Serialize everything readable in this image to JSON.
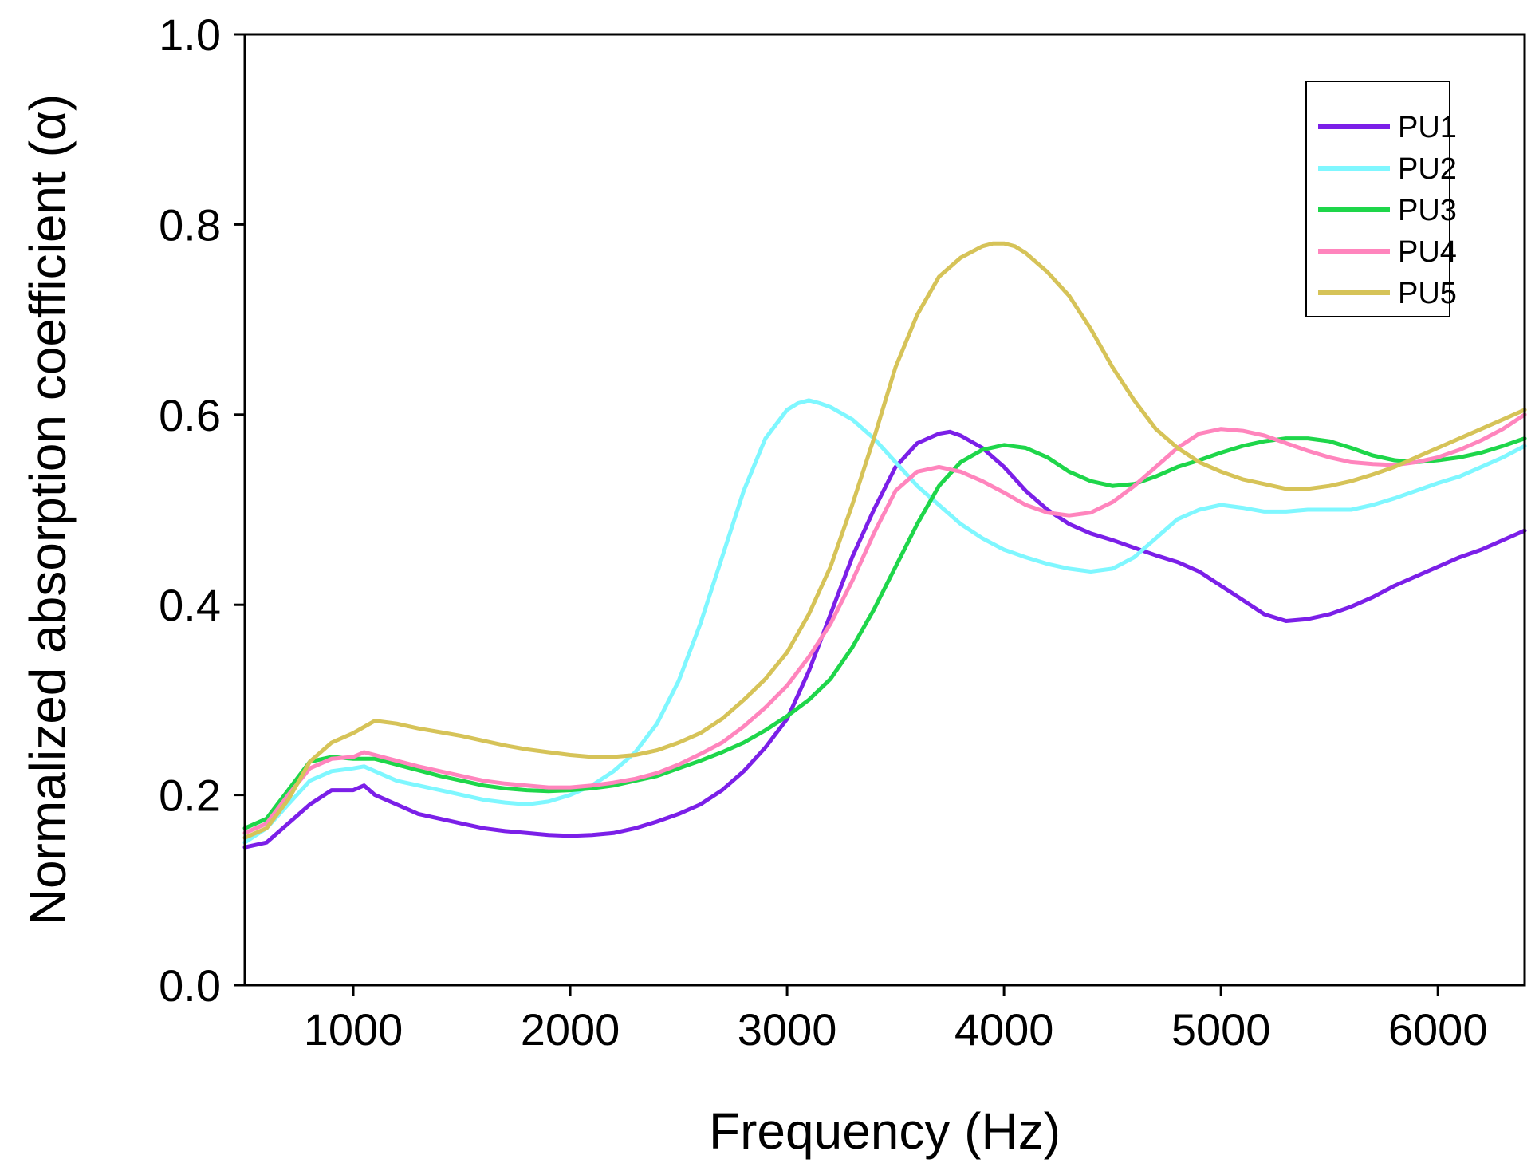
{
  "chart_data": {
    "type": "line",
    "title": "",
    "xlabel": "Frequency (Hz)",
    "ylabel": "Normalized absorption coefficient (α)",
    "xlim": [
      500,
      6400
    ],
    "ylim": [
      0.0,
      1.0
    ],
    "xticks": [
      1000,
      2000,
      3000,
      4000,
      5000,
      6000
    ],
    "xtick_labels": [
      "1000",
      "2000",
      "3000",
      "4000",
      "5000",
      "6000"
    ],
    "yticks": [
      0.0,
      0.2,
      0.4,
      0.6,
      0.8,
      1.0
    ],
    "ytick_labels": [
      "0.0",
      "0.2",
      "0.4",
      "0.6",
      "0.8",
      "1.0"
    ],
    "grid": false,
    "legend_position": "top-right",
    "series": [
      {
        "name": "PU1",
        "color": "#7b1fe8",
        "x": [
          500,
          600,
          700,
          800,
          900,
          1000,
          1050,
          1100,
          1200,
          1300,
          1400,
          1500,
          1600,
          1700,
          1800,
          1900,
          2000,
          2100,
          2200,
          2300,
          2400,
          2500,
          2600,
          2700,
          2800,
          2900,
          3000,
          3100,
          3200,
          3300,
          3400,
          3500,
          3600,
          3700,
          3750,
          3800,
          3900,
          4000,
          4100,
          4200,
          4300,
          4400,
          4500,
          4600,
          4700,
          4800,
          4900,
          5000,
          5100,
          5200,
          5300,
          5400,
          5500,
          5600,
          5700,
          5800,
          5900,
          6000,
          6100,
          6200,
          6300,
          6400
        ],
        "y": [
          0.145,
          0.15,
          0.17,
          0.19,
          0.205,
          0.205,
          0.21,
          0.2,
          0.19,
          0.18,
          0.175,
          0.17,
          0.165,
          0.162,
          0.16,
          0.158,
          0.157,
          0.158,
          0.16,
          0.165,
          0.172,
          0.18,
          0.19,
          0.205,
          0.225,
          0.25,
          0.28,
          0.33,
          0.39,
          0.45,
          0.5,
          0.545,
          0.57,
          0.58,
          0.582,
          0.578,
          0.565,
          0.545,
          0.52,
          0.5,
          0.485,
          0.475,
          0.468,
          0.46,
          0.452,
          0.445,
          0.435,
          0.42,
          0.405,
          0.39,
          0.383,
          0.385,
          0.39,
          0.398,
          0.408,
          0.42,
          0.43,
          0.44,
          0.45,
          0.458,
          0.468,
          0.478
        ]
      },
      {
        "name": "PU2",
        "color": "#7ff7ff",
        "x": [
          500,
          600,
          700,
          800,
          900,
          1000,
          1050,
          1100,
          1200,
          1300,
          1400,
          1500,
          1600,
          1700,
          1800,
          1900,
          2000,
          2100,
          2200,
          2300,
          2400,
          2500,
          2600,
          2700,
          2800,
          2900,
          3000,
          3050,
          3100,
          3150,
          3200,
          3300,
          3400,
          3500,
          3600,
          3700,
          3800,
          3900,
          4000,
          4100,
          4200,
          4300,
          4400,
          4500,
          4600,
          4700,
          4800,
          4900,
          5000,
          5100,
          5200,
          5300,
          5400,
          5500,
          5600,
          5700,
          5800,
          5900,
          6000,
          6100,
          6200,
          6300,
          6400
        ],
        "y": [
          0.15,
          0.165,
          0.19,
          0.215,
          0.225,
          0.228,
          0.23,
          0.225,
          0.215,
          0.21,
          0.205,
          0.2,
          0.195,
          0.192,
          0.19,
          0.193,
          0.2,
          0.21,
          0.225,
          0.245,
          0.275,
          0.32,
          0.38,
          0.45,
          0.52,
          0.575,
          0.605,
          0.612,
          0.615,
          0.612,
          0.608,
          0.595,
          0.575,
          0.55,
          0.525,
          0.505,
          0.485,
          0.47,
          0.458,
          0.45,
          0.443,
          0.438,
          0.435,
          0.438,
          0.45,
          0.47,
          0.49,
          0.5,
          0.505,
          0.502,
          0.498,
          0.498,
          0.5,
          0.5,
          0.5,
          0.505,
          0.512,
          0.52,
          0.528,
          0.535,
          0.545,
          0.555,
          0.567
        ]
      },
      {
        "name": "PU3",
        "color": "#1ed64a",
        "x": [
          500,
          600,
          700,
          800,
          900,
          1000,
          1100,
          1200,
          1300,
          1400,
          1500,
          1600,
          1700,
          1800,
          1900,
          2000,
          2100,
          2200,
          2300,
          2400,
          2500,
          2600,
          2700,
          2800,
          2900,
          3000,
          3100,
          3200,
          3300,
          3400,
          3500,
          3600,
          3700,
          3800,
          3900,
          4000,
          4100,
          4200,
          4300,
          4400,
          4500,
          4600,
          4700,
          4800,
          4900,
          5000,
          5100,
          5200,
          5300,
          5400,
          5500,
          5600,
          5700,
          5800,
          5900,
          6000,
          6100,
          6200,
          6300,
          6400
        ],
        "y": [
          0.165,
          0.175,
          0.205,
          0.235,
          0.24,
          0.238,
          0.238,
          0.232,
          0.226,
          0.22,
          0.215,
          0.21,
          0.207,
          0.205,
          0.204,
          0.205,
          0.207,
          0.21,
          0.215,
          0.22,
          0.228,
          0.236,
          0.245,
          0.255,
          0.268,
          0.283,
          0.3,
          0.322,
          0.355,
          0.395,
          0.44,
          0.485,
          0.525,
          0.55,
          0.563,
          0.568,
          0.565,
          0.555,
          0.54,
          0.53,
          0.525,
          0.527,
          0.535,
          0.545,
          0.552,
          0.56,
          0.567,
          0.572,
          0.575,
          0.575,
          0.572,
          0.565,
          0.557,
          0.552,
          0.55,
          0.552,
          0.555,
          0.56,
          0.567,
          0.575
        ]
      },
      {
        "name": "PU4",
        "color": "#ff85bd",
        "x": [
          500,
          600,
          700,
          800,
          900,
          1000,
          1050,
          1100,
          1200,
          1300,
          1400,
          1500,
          1600,
          1700,
          1800,
          1900,
          2000,
          2100,
          2200,
          2300,
          2400,
          2500,
          2600,
          2700,
          2800,
          2900,
          3000,
          3100,
          3200,
          3300,
          3400,
          3500,
          3600,
          3700,
          3800,
          3900,
          4000,
          4100,
          4200,
          4300,
          4400,
          4500,
          4600,
          4700,
          4800,
          4900,
          5000,
          5100,
          5200,
          5300,
          5400,
          5500,
          5600,
          5700,
          5800,
          5900,
          6000,
          6100,
          6200,
          6300,
          6400
        ],
        "y": [
          0.16,
          0.17,
          0.2,
          0.228,
          0.238,
          0.24,
          0.245,
          0.242,
          0.236,
          0.23,
          0.225,
          0.22,
          0.215,
          0.212,
          0.21,
          0.208,
          0.208,
          0.21,
          0.213,
          0.217,
          0.223,
          0.232,
          0.243,
          0.255,
          0.272,
          0.292,
          0.315,
          0.345,
          0.38,
          0.425,
          0.475,
          0.52,
          0.54,
          0.545,
          0.54,
          0.53,
          0.518,
          0.505,
          0.497,
          0.494,
          0.497,
          0.508,
          0.525,
          0.545,
          0.565,
          0.58,
          0.585,
          0.583,
          0.578,
          0.57,
          0.562,
          0.555,
          0.55,
          0.548,
          0.547,
          0.55,
          0.555,
          0.563,
          0.573,
          0.585,
          0.6
        ]
      },
      {
        "name": "PU5",
        "color": "#d6c358",
        "x": [
          500,
          600,
          700,
          800,
          900,
          1000,
          1100,
          1200,
          1300,
          1400,
          1500,
          1600,
          1700,
          1800,
          1900,
          2000,
          2100,
          2200,
          2300,
          2400,
          2500,
          2600,
          2700,
          2800,
          2900,
          3000,
          3100,
          3200,
          3300,
          3400,
          3500,
          3600,
          3700,
          3800,
          3900,
          3950,
          4000,
          4050,
          4100,
          4200,
          4300,
          4400,
          4500,
          4600,
          4700,
          4800,
          4900,
          5000,
          5100,
          5200,
          5300,
          5400,
          5500,
          5600,
          5700,
          5800,
          5900,
          6000,
          6100,
          6200,
          6300,
          6400
        ],
        "y": [
          0.155,
          0.165,
          0.195,
          0.235,
          0.255,
          0.265,
          0.278,
          0.275,
          0.27,
          0.266,
          0.262,
          0.257,
          0.252,
          0.248,
          0.245,
          0.242,
          0.24,
          0.24,
          0.242,
          0.247,
          0.255,
          0.265,
          0.28,
          0.3,
          0.322,
          0.35,
          0.39,
          0.44,
          0.505,
          0.575,
          0.65,
          0.705,
          0.745,
          0.765,
          0.777,
          0.78,
          0.78,
          0.777,
          0.77,
          0.75,
          0.725,
          0.69,
          0.65,
          0.615,
          0.585,
          0.565,
          0.55,
          0.54,
          0.532,
          0.527,
          0.522,
          0.522,
          0.525,
          0.53,
          0.537,
          0.545,
          0.555,
          0.565,
          0.575,
          0.585,
          0.595,
          0.605
        ]
      }
    ]
  }
}
